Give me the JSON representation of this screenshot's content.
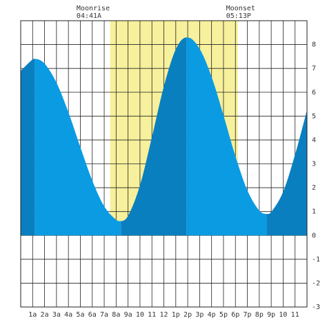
{
  "chart_data": {
    "type": "area",
    "x": [
      0,
      1,
      1.2,
      2,
      3,
      4,
      5,
      6,
      7,
      8,
      8.4,
      9,
      10,
      11,
      12,
      13,
      13.9,
      14,
      15,
      16,
      17,
      18,
      19,
      20,
      20.6,
      21,
      22,
      23,
      24
    ],
    "values": [
      6.9,
      7.38,
      7.4,
      7.2,
      6.4,
      5.16,
      3.7,
      2.3,
      1.22,
      0.65,
      0.6,
      0.82,
      2.1,
      4.12,
      6.24,
      7.8,
      8.3,
      8.3,
      7.82,
      6.65,
      5.03,
      3.32,
      1.89,
      1.04,
      0.9,
      0.98,
      1.83,
      3.39,
      5.25
    ],
    "colors": {
      "rising": "#0a7fc0",
      "falling": "#0a9be3"
    },
    "xlim": [
      0,
      24
    ],
    "xticks": [
      {
        "value": 1,
        "label": "1a"
      },
      {
        "value": 2,
        "label": "2a"
      },
      {
        "value": 3,
        "label": "3a"
      },
      {
        "value": 4,
        "label": "4a"
      },
      {
        "value": 5,
        "label": "5a"
      },
      {
        "value": 6,
        "label": "6a"
      },
      {
        "value": 7,
        "label": "7a"
      },
      {
        "value": 8,
        "label": "8a"
      },
      {
        "value": 9,
        "label": "9a"
      },
      10,
      11,
      12,
      {
        "value": 13,
        "label": "1p"
      },
      {
        "value": 14,
        "label": "2p"
      },
      {
        "value": 15,
        "label": "3p"
      },
      {
        "value": 16,
        "label": "4p"
      },
      {
        "value": 17,
        "label": "5p"
      },
      {
        "value": 18,
        "label": "6p"
      },
      {
        "value": 19,
        "label": "7p"
      },
      {
        "value": 20,
        "label": "8p"
      },
      {
        "value": 21,
        "label": "9p"
      },
      {
        "value": 22,
        "label": "10"
      },
      {
        "value": 23,
        "label": "11"
      }
    ],
    "ylim": [
      -3,
      9
    ],
    "yticks": [
      -3,
      -2,
      -1,
      0,
      1,
      2,
      3,
      4,
      5,
      6,
      7,
      8
    ],
    "grid": true,
    "daylight": {
      "span": [
        7.5,
        18.2
      ],
      "color": "#f7f09c"
    },
    "annotations": [
      {
        "label": "Moonrise",
        "time": "04:41A",
        "x": 4.68
      },
      {
        "label": "Moonset",
        "time": "05:13P",
        "x": 17.22
      }
    ]
  }
}
